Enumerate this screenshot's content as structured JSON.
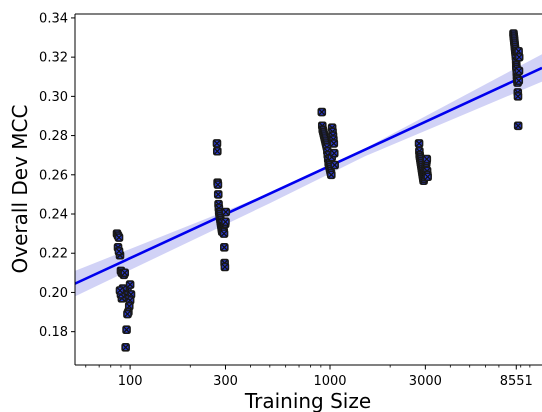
{
  "chart_data": {
    "type": "scatter",
    "title": "",
    "xlabel": "Training Size",
    "ylabel": "Overall Dev MCC",
    "x_scale": "log",
    "xlim": [
      53,
      11500
    ],
    "ylim": [
      0.163,
      0.342
    ],
    "x_ticks": [
      100,
      300,
      1000,
      3000,
      8551
    ],
    "x_tick_labels": [
      "100",
      "300",
      "1000",
      "3000",
      "8551"
    ],
    "y_ticks": [
      0.18,
      0.2,
      0.22,
      0.24,
      0.26,
      0.28,
      0.3,
      0.32,
      0.34
    ],
    "y_tick_labels": [
      "0.18",
      "0.20",
      "0.22",
      "0.24",
      "0.26",
      "0.28",
      "0.30",
      "0.32",
      "0.34"
    ],
    "grid": false,
    "legend": "none",
    "colors": {
      "points_fill": "#2b3bd6",
      "points_edge": "#1a1a1a",
      "regression_line": "#0000ee",
      "confidence_band": "#c9caf4"
    },
    "regression_line": {
      "x": [
        53,
        11500
      ],
      "y": [
        0.2045,
        0.3145
      ]
    },
    "confidence_band": {
      "x": [
        53,
        500,
        1500,
        11500
      ],
      "lower": [
        0.198,
        0.2455,
        0.2695,
        0.3075
      ],
      "upper": [
        0.211,
        0.2505,
        0.2735,
        0.3215
      ]
    },
    "series": [
      {
        "x": [
          86,
          87,
          88,
          89,
          87,
          88,
          90,
          91,
          92,
          93,
          94,
          95,
          96,
          97,
          98,
          99,
          100,
          101,
          100,
          99,
          98,
          97,
          96,
          95,
          94,
          93,
          92,
          91,
          90,
          89
        ],
        "y": [
          0.23,
          0.229,
          0.228,
          0.219,
          0.223,
          0.221,
          0.211,
          0.21,
          0.21,
          0.209,
          0.21,
          0.199,
          0.2,
          0.201,
          0.198,
          0.197,
          0.204,
          0.199,
          0.196,
          0.193,
          0.19,
          0.189,
          0.181,
          0.172,
          0.198,
          0.2,
          0.202,
          0.197,
          0.199,
          0.201
        ]
      },
      {
        "x": [
          272,
          273,
          274,
          275,
          276,
          277,
          278,
          279,
          280,
          281,
          282,
          283,
          284,
          285,
          286,
          287,
          288,
          289,
          290,
          291,
          292,
          293,
          294,
          295,
          296,
          297,
          298,
          299,
          300,
          301
        ],
        "y": [
          0.276,
          0.272,
          0.256,
          0.255,
          0.25,
          0.245,
          0.243,
          0.241,
          0.24,
          0.239,
          0.238,
          0.237,
          0.236,
          0.235,
          0.234,
          0.233,
          0.232,
          0.231,
          0.236,
          0.234,
          0.233,
          0.232,
          0.231,
          0.23,
          0.223,
          0.215,
          0.213,
          0.235,
          0.236,
          0.241
        ]
      },
      {
        "x": [
          910,
          915,
          920,
          925,
          930,
          935,
          940,
          945,
          950,
          955,
          960,
          965,
          970,
          975,
          980,
          985,
          990,
          995,
          1000,
          1005,
          1010,
          1015,
          1020,
          1025,
          1030,
          1035,
          1040,
          1045,
          1050,
          1055
        ],
        "y": [
          0.292,
          0.285,
          0.283,
          0.282,
          0.281,
          0.28,
          0.279,
          0.278,
          0.277,
          0.276,
          0.275,
          0.274,
          0.272,
          0.27,
          0.268,
          0.266,
          0.265,
          0.264,
          0.263,
          0.262,
          0.261,
          0.26,
          0.269,
          0.284,
          0.282,
          0.28,
          0.278,
          0.276,
          0.271,
          0.265
        ]
      },
      {
        "x": [
          2790,
          2800,
          2810,
          2820,
          2830,
          2840,
          2850,
          2860,
          2870,
          2880,
          2890,
          2900,
          2910,
          2920,
          2930,
          2940,
          2950,
          2960,
          2970,
          2980,
          2990,
          3000,
          3010,
          3020,
          3030,
          3040,
          3050,
          3060,
          3070,
          3080
        ],
        "y": [
          0.276,
          0.272,
          0.27,
          0.269,
          0.268,
          0.267,
          0.266,
          0.265,
          0.264,
          0.263,
          0.262,
          0.261,
          0.26,
          0.259,
          0.258,
          0.257,
          0.258,
          0.259,
          0.26,
          0.261,
          0.262,
          0.263,
          0.264,
          0.265,
          0.266,
          0.267,
          0.268,
          0.262,
          0.26,
          0.259
        ]
      },
      {
        "x": [
          8280,
          8300,
          8320,
          8340,
          8360,
          8380,
          8400,
          8420,
          8440,
          8460,
          8480,
          8500,
          8520,
          8540,
          8551,
          8560,
          8580,
          8600,
          8620,
          8640,
          8660,
          8680,
          8700,
          8720,
          8740,
          8760,
          8780,
          8800,
          8820,
          8840
        ],
        "y": [
          0.332,
          0.331,
          0.33,
          0.329,
          0.328,
          0.327,
          0.326,
          0.325,
          0.324,
          0.323,
          0.322,
          0.321,
          0.32,
          0.318,
          0.316,
          0.315,
          0.314,
          0.312,
          0.31,
          0.309,
          0.308,
          0.307,
          0.302,
          0.3,
          0.285,
          0.322,
          0.323,
          0.308,
          0.313,
          0.32
        ]
      }
    ]
  }
}
